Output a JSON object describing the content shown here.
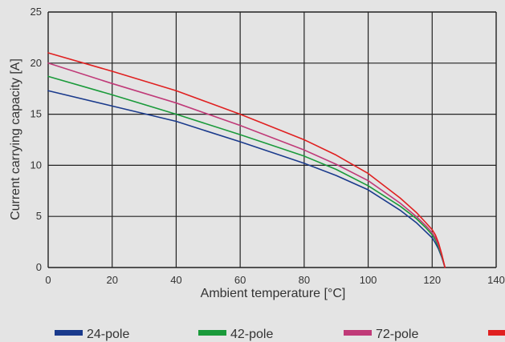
{
  "chart_data": {
    "type": "line",
    "xlabel": "Ambient temperature [°C]",
    "ylabel": "Current carrying capacity [A]",
    "xlim": [
      0,
      140
    ],
    "ylim": [
      0,
      25
    ],
    "x_ticks": [
      "0",
      "20",
      "40",
      "60",
      "80",
      "100",
      "120",
      "140"
    ],
    "y_ticks": [
      "0",
      "5",
      "10",
      "15",
      "20",
      "25"
    ],
    "grid": true,
    "legend_position": "bottom",
    "series": [
      {
        "name": "24-pole",
        "color": "#1a3a8c",
        "x": [
          0,
          20,
          40,
          60,
          80,
          90,
          100,
          110,
          115,
          118,
          120,
          121,
          122,
          123,
          124
        ],
        "y": [
          17.3,
          15.8,
          14.3,
          12.3,
          10.2,
          9.0,
          7.6,
          5.6,
          4.4,
          3.5,
          2.9,
          2.4,
          1.8,
          1.0,
          0
        ]
      },
      {
        "name": "42-pole",
        "color": "#1a9a3a",
        "x": [
          0,
          20,
          40,
          60,
          80,
          90,
          100,
          110,
          115,
          118,
          120,
          121,
          122,
          123,
          124
        ],
        "y": [
          18.7,
          16.9,
          15.0,
          13.0,
          10.9,
          9.6,
          8.0,
          6.0,
          4.8,
          3.9,
          3.2,
          2.7,
          2.0,
          1.1,
          0
        ]
      },
      {
        "name": "72-pole",
        "color": "#c03a78",
        "x": [
          0,
          20,
          40,
          60,
          80,
          90,
          100,
          110,
          115,
          118,
          120,
          121,
          122,
          123,
          124
        ],
        "y": [
          20.0,
          18.0,
          16.1,
          13.9,
          11.5,
          10.1,
          8.5,
          6.3,
          5.0,
          4.1,
          3.4,
          2.9,
          2.2,
          1.2,
          0
        ]
      },
      {
        "name": "",
        "color": "#e02020",
        "x": [
          0,
          20,
          40,
          60,
          80,
          90,
          100,
          110,
          115,
          118,
          120,
          121,
          122,
          123,
          124
        ],
        "y": [
          21.0,
          19.2,
          17.3,
          15.0,
          12.5,
          11.0,
          9.2,
          6.8,
          5.4,
          4.4,
          3.7,
          3.2,
          2.4,
          1.3,
          0
        ]
      }
    ]
  }
}
